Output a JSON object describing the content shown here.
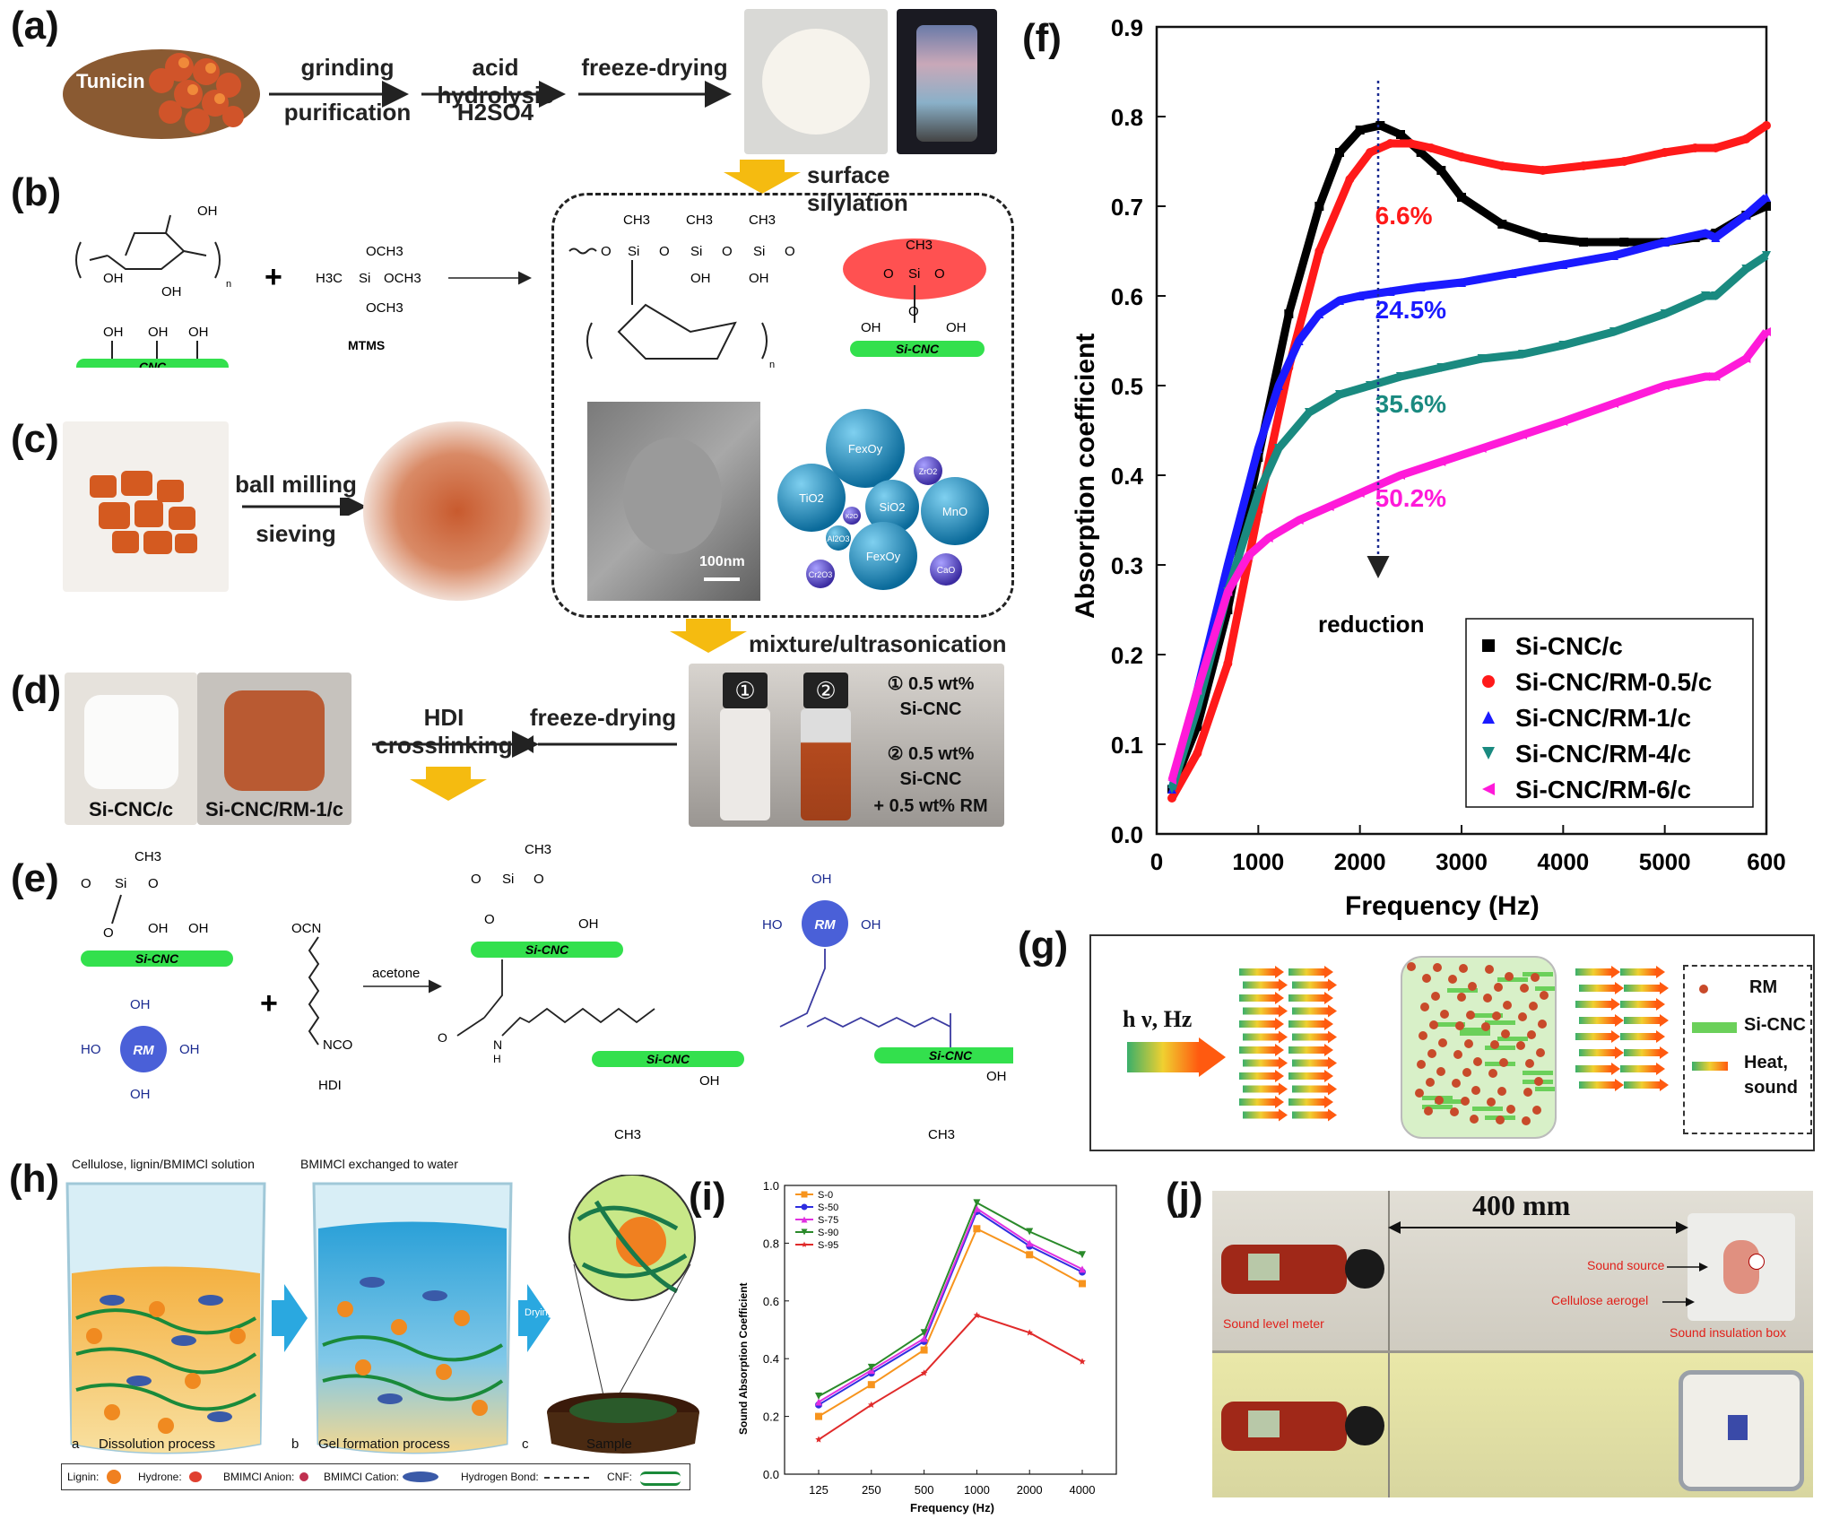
{
  "panels": {
    "a": "(a)",
    "b": "(b)",
    "c": "(c)",
    "d": "(d)",
    "e": "(e)",
    "f": "(f)",
    "g": "(g)",
    "h": "(h)",
    "i": "(i)",
    "j": "(j)"
  },
  "panel_a": {
    "tunicin": "Tunicin",
    "step1_top": "grinding",
    "step1_bottom": "purification",
    "step2_top": "acid hydrolysis",
    "step2_bottom": "H2SO4",
    "step3_top": "freeze-drying"
  },
  "arrows": {
    "surface_silylation": "surface silylation",
    "mixture": "mixture/ultrasonication",
    "hdi": "HDI crosslinking",
    "freeze_drying": "freeze-drying"
  },
  "panel_b": {
    "cnc": "CNC",
    "mtms": "MTMS",
    "si_cnc": "Si-CNC",
    "oh": "OH",
    "och3": "OCH3",
    "ch3": "CH3",
    "si": "Si",
    "o": "O",
    "n": "n",
    "h3c": "H3C"
  },
  "panel_c": {
    "step_top": "ball milling",
    "step_bottom": "sieving",
    "scale": "100nm",
    "spheres": [
      "FexOy",
      "TiO2",
      "SiO2",
      "MnO",
      "FexOy",
      "CaO",
      "ZrO2",
      "Al2O3",
      "Cr2O3",
      "K2O"
    ]
  },
  "panel_d": {
    "label_left": "Si-CNC/c",
    "label_right": "Si-CNC/RM-1/c",
    "vial1_line1": "① 0.5 wt%",
    "vial1_line2": "Si-CNC",
    "vial2_line1": "② 0.5 wt%",
    "vial2_line2": "Si-CNC",
    "vial2_line3": "+ 0.5 wt% RM",
    "cap1": "①",
    "cap2": "②"
  },
  "panel_e": {
    "acetone": "acetone",
    "hdi": "HDI",
    "rm": "RM",
    "ocn": "OCN",
    "nco": "NCO",
    "si_cnc": "Si-CNC",
    "oh": "OH",
    "ho": "HO",
    "h": "H",
    "n": "N",
    "c": "C",
    "o": "O"
  },
  "panel_g": {
    "input": "h ν, Hz",
    "legend": [
      "RM",
      "Si-CNC",
      "Heat,",
      "sound"
    ]
  },
  "panel_h": {
    "title_left": "Cellulose, lignin/BMIMCl solution",
    "title_mid": "BMIMCl exchanged to water",
    "drying": "Drying",
    "captions": [
      {
        "letter": "a",
        "text": "Dissolution process"
      },
      {
        "letter": "b",
        "text": "Gel formation process"
      },
      {
        "letter": "c",
        "text": "Sample"
      }
    ],
    "legend": [
      "Lignin:",
      "Hydrone:",
      "BMIMCl Anion:",
      "BMIMCl Cation:",
      "Hydrogen Bond:",
      "CNF:"
    ]
  },
  "panel_j": {
    "distance": "400 mm",
    "sound_source": "Sound source",
    "cellulose_aerogel": "Cellulose aerogel",
    "sound_level_meter": "Sound level meter",
    "insulation_box": "Sound insulation box"
  },
  "chart_data": [
    {
      "id": "f",
      "type": "line",
      "title": "",
      "xlabel": "Frequency (Hz)",
      "ylabel": "Absorption coefficient",
      "xlim": [
        0,
        6000
      ],
      "ylim": [
        0,
        0.9
      ],
      "xticks": [
        "0",
        "1000",
        "2000",
        "3000",
        "4000",
        "5000",
        "600"
      ],
      "yticks": [
        "0.0",
        "0.1",
        "0.2",
        "0.3",
        "0.4",
        "0.5",
        "0.6",
        "0.7",
        "0.8",
        "0.9"
      ],
      "legend_position": "bottom-right",
      "annotation": "reduction",
      "series": [
        {
          "name": "Si-CNC/c",
          "color": "#000000",
          "marker": "square",
          "x": [
            150,
            400,
            700,
            1000,
            1300,
            1600,
            1800,
            2000,
            2200,
            2400,
            2600,
            2800,
            3000,
            3400,
            3800,
            4200,
            4600,
            5000,
            5300,
            5500,
            5800,
            6000
          ],
          "y": [
            0.05,
            0.12,
            0.25,
            0.42,
            0.58,
            0.7,
            0.76,
            0.785,
            0.79,
            0.78,
            0.76,
            0.74,
            0.71,
            0.68,
            0.665,
            0.66,
            0.66,
            0.66,
            0.665,
            0.67,
            0.69,
            0.7
          ]
        },
        {
          "name": "Si-CNC/RM-0.5/c",
          "color": "#ff1a1a",
          "marker": "circle",
          "pct": "6.6%",
          "x": [
            150,
            400,
            700,
            1000,
            1300,
            1600,
            1900,
            2100,
            2300,
            2500,
            2700,
            3000,
            3400,
            3800,
            4200,
            4600,
            5000,
            5300,
            5500,
            5800,
            6000
          ],
          "y": [
            0.04,
            0.09,
            0.19,
            0.36,
            0.52,
            0.65,
            0.73,
            0.76,
            0.77,
            0.77,
            0.765,
            0.755,
            0.745,
            0.74,
            0.745,
            0.75,
            0.76,
            0.765,
            0.765,
            0.775,
            0.79
          ]
        },
        {
          "name": "Si-CNC/RM-1/c",
          "color": "#1a1aff",
          "marker": "triangle-up",
          "pct": "24.5%",
          "x": [
            150,
            400,
            700,
            1000,
            1200,
            1400,
            1600,
            1800,
            2000,
            2300,
            2600,
            3000,
            3500,
            4000,
            4500,
            5000,
            5400,
            5500,
            5800,
            6000
          ],
          "y": [
            0.05,
            0.16,
            0.3,
            0.43,
            0.5,
            0.55,
            0.58,
            0.595,
            0.6,
            0.605,
            0.61,
            0.615,
            0.625,
            0.635,
            0.645,
            0.66,
            0.67,
            0.665,
            0.69,
            0.71
          ]
        },
        {
          "name": "Si-CNC/RM-4/c",
          "color": "#1a8a80",
          "marker": "triangle-down",
          "pct": "35.6%",
          "x": [
            150,
            400,
            700,
            1000,
            1200,
            1500,
            1800,
            2100,
            2400,
            2800,
            3200,
            3600,
            4000,
            4500,
            5000,
            5400,
            5500,
            5800,
            6000
          ],
          "y": [
            0.05,
            0.14,
            0.27,
            0.38,
            0.43,
            0.47,
            0.49,
            0.5,
            0.51,
            0.52,
            0.53,
            0.535,
            0.545,
            0.56,
            0.58,
            0.6,
            0.6,
            0.63,
            0.645
          ]
        },
        {
          "name": "Si-CNC/RM-6/c",
          "color": "#ff1ad9",
          "marker": "triangle-left",
          "pct": "50.2%",
          "x": [
            150,
            400,
            700,
            900,
            1100,
            1400,
            1700,
            2000,
            2400,
            2800,
            3200,
            3600,
            4000,
            4500,
            5000,
            5400,
            5500,
            5800,
            6000
          ],
          "y": [
            0.06,
            0.16,
            0.27,
            0.31,
            0.33,
            0.35,
            0.365,
            0.38,
            0.4,
            0.415,
            0.43,
            0.445,
            0.46,
            0.48,
            0.5,
            0.51,
            0.51,
            0.53,
            0.56
          ]
        }
      ]
    },
    {
      "id": "i",
      "type": "line",
      "title": "",
      "xlabel": "Frequency (Hz)",
      "ylabel": "Sound Absorption Coefficient",
      "categories": [
        "125",
        "250",
        "500",
        "1000",
        "2000",
        "4000"
      ],
      "ylim": [
        0,
        1.0
      ],
      "yticks": [
        "0.0",
        "0.2",
        "0.4",
        "0.6",
        "0.8",
        "1.0"
      ],
      "legend_position": "top-left",
      "series": [
        {
          "name": "S-0",
          "color": "#f7941d",
          "marker": "square",
          "values": [
            0.2,
            0.31,
            0.43,
            0.85,
            0.76,
            0.66
          ]
        },
        {
          "name": "S-50",
          "color": "#2e2ee0",
          "marker": "circle",
          "values": [
            0.24,
            0.35,
            0.46,
            0.91,
            0.79,
            0.7
          ]
        },
        {
          "name": "S-75",
          "color": "#e030e0",
          "marker": "triangle-up",
          "values": [
            0.25,
            0.36,
            0.47,
            0.92,
            0.8,
            0.71
          ]
        },
        {
          "name": "S-90",
          "color": "#2a8a2a",
          "marker": "triangle-down",
          "values": [
            0.27,
            0.37,
            0.49,
            0.94,
            0.84,
            0.76
          ]
        },
        {
          "name": "S-95",
          "color": "#e02a2a",
          "marker": "star",
          "values": [
            0.12,
            0.24,
            0.35,
            0.55,
            0.49,
            0.39
          ]
        }
      ]
    }
  ]
}
